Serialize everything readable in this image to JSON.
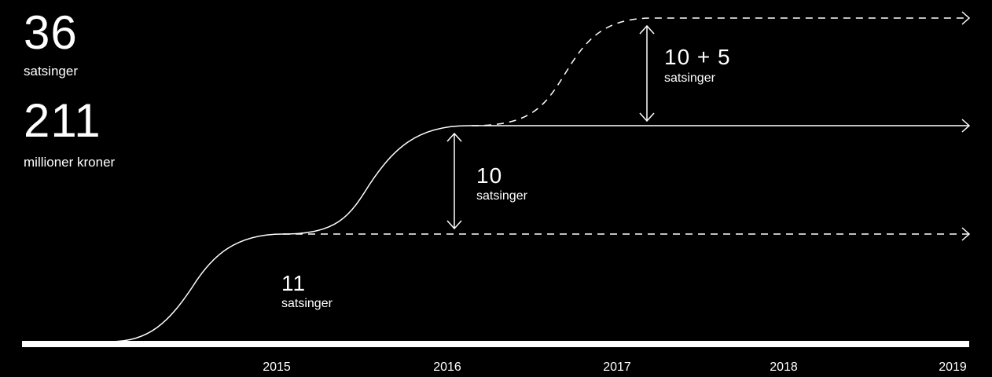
{
  "stats": {
    "initiatives_count": "36",
    "initiatives_label": "satsinger",
    "budget_amount": "211",
    "budget_label": "millioner kroner"
  },
  "annotations": [
    {
      "number": "11",
      "label": "satsinger"
    },
    {
      "number": "10",
      "label": "satsinger"
    },
    {
      "number": "10 + 5",
      "label": "satsinger"
    }
  ],
  "timeline": {
    "years": [
      "2015",
      "2016",
      "2017",
      "2018",
      "2019"
    ]
  },
  "colors": {
    "background": "#000000",
    "foreground": "#ffffff"
  }
}
